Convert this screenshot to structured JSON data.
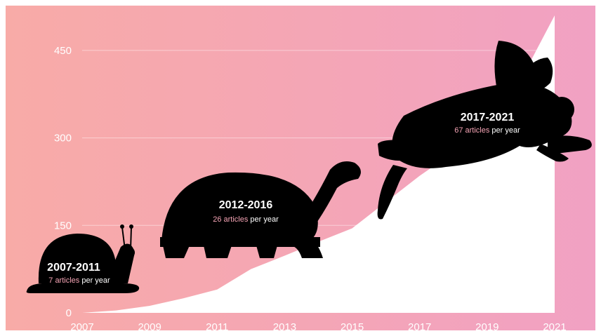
{
  "chart_data": {
    "type": "area",
    "title": "",
    "xlabel": "",
    "ylabel": "",
    "x": [
      2007,
      2008,
      2009,
      2010,
      2011,
      2012,
      2013,
      2014,
      2015,
      2016,
      2017,
      2018,
      2019,
      2020,
      2021
    ],
    "series": [
      {
        "values": [
          0,
          4,
          12,
          25,
          40,
          75,
          98,
          122,
          145,
          190,
          235,
          275,
          335,
          400,
          510
        ]
      }
    ],
    "x_ticks": [
      "2007",
      "2009",
      "2011",
      "2013",
      "2015",
      "2017",
      "2019",
      "2021"
    ],
    "y_ticks": [
      "0",
      "150",
      "300",
      "450"
    ],
    "y_tick_values": [
      0,
      150,
      300,
      450
    ],
    "xlim": [
      2007,
      2021
    ],
    "ylim": [
      0,
      510
    ],
    "grid": true,
    "colors": {
      "bg_left": "#f8aba7",
      "bg_right": "#f1a1c3",
      "area": "#ffffff",
      "silhouette": "#000000",
      "highlight": "#f4a3b4"
    },
    "annotations": [
      {
        "id": "snail",
        "icon": "snail-icon",
        "period": "2007-2011",
        "highlight": "7 articles",
        "rest": " per year"
      },
      {
        "id": "tortoise",
        "icon": "tortoise-icon",
        "period": "2012-2016",
        "highlight": "26 articles",
        "rest": " per year"
      },
      {
        "id": "rabbit",
        "icon": "rabbit-icon",
        "period": "2017-2021",
        "highlight": "67 articles",
        "rest": " per year"
      }
    ]
  }
}
